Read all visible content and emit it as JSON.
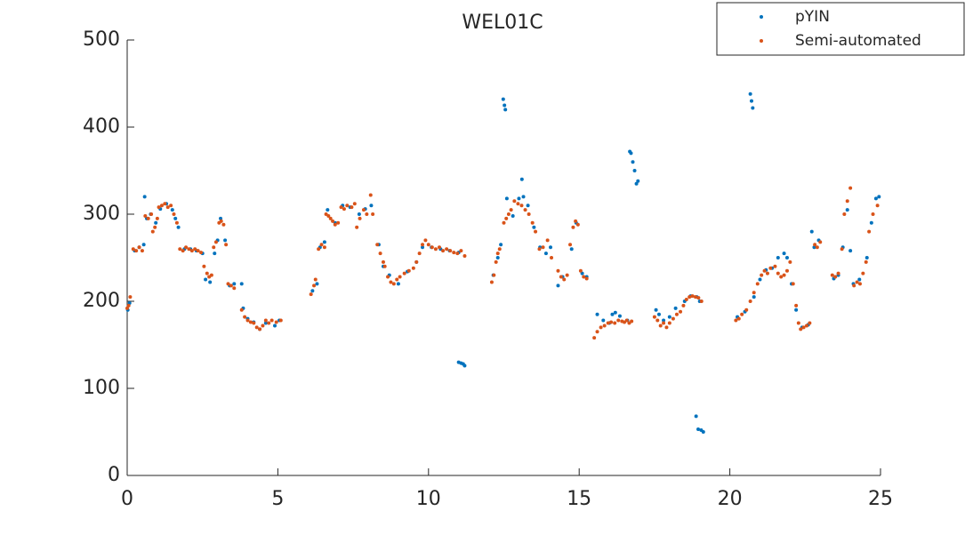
{
  "chart_data": {
    "type": "scatter",
    "title": "WEL01C",
    "xlim": [
      0,
      25
    ],
    "xticks": [
      0,
      5,
      10,
      15,
      20,
      25
    ],
    "ylim": [
      0,
      500
    ],
    "yticks": [
      0,
      100,
      200,
      300,
      400,
      500
    ],
    "grid": false,
    "legend": "top-right",
    "series": [
      {
        "name": "pYIN",
        "color": "#0072bd",
        "x": [
          0.02,
          0.08,
          0.25,
          0.4,
          0.55,
          0.58,
          0.65,
          0.78,
          0.95,
          1.1,
          1.3,
          1.5,
          1.6,
          1.7,
          1.9,
          2.1,
          2.3,
          2.5,
          2.6,
          2.75,
          2.9,
          3.0,
          3.1,
          3.25,
          3.4,
          3.55,
          3.8,
          3.85,
          4.0,
          4.2,
          4.4,
          4.6,
          4.9,
          5.05,
          6.15,
          6.3,
          6.4,
          6.55,
          6.65,
          6.9,
          7.15,
          7.4,
          7.7,
          7.9,
          8.1,
          8.35,
          8.5,
          8.7,
          9.0,
          9.3,
          9.6,
          9.8,
          10.1,
          10.4,
          10.7,
          11.0,
          11.0,
          11.08,
          11.15,
          11.2,
          12.15,
          12.3,
          12.4,
          12.48,
          12.52,
          12.55,
          12.6,
          12.8,
          13.0,
          13.1,
          13.15,
          13.3,
          13.5,
          13.7,
          13.9,
          14.05,
          14.3,
          14.45,
          14.75,
          14.9,
          15.1,
          15.25,
          15.6,
          15.8,
          16.0,
          16.1,
          16.2,
          16.35,
          16.6,
          16.68,
          16.72,
          16.78,
          16.84,
          16.9,
          16.95,
          17.55,
          17.65,
          17.8,
          18.0,
          18.2,
          18.5,
          18.7,
          18.9,
          19.0,
          18.88,
          18.95,
          19.05,
          19.12,
          20.25,
          20.5,
          20.68,
          20.72,
          20.76,
          20.8,
          21.0,
          21.2,
          21.4,
          21.6,
          21.8,
          21.9,
          22.05,
          22.2,
          22.4,
          22.6,
          22.72,
          22.8,
          22.95,
          23.45,
          23.6,
          23.75,
          23.9,
          24.0,
          24.1,
          24.3,
          24.55,
          24.7,
          24.85,
          24.95
        ],
        "values": [
          190,
          198,
          258,
          262,
          265,
          320,
          295,
          300,
          290,
          306,
          312,
          305,
          295,
          285,
          260,
          260,
          258,
          255,
          225,
          222,
          255,
          270,
          295,
          270,
          218,
          220,
          220,
          192,
          180,
          176,
          168,
          175,
          172,
          178,
          212,
          220,
          262,
          268,
          305,
          290,
          310,
          308,
          300,
          306,
          310,
          265,
          240,
          230,
          220,
          234,
          245,
          262,
          262,
          260,
          258,
          256,
          130,
          129,
          128,
          126,
          230,
          250,
          265,
          432,
          425,
          420,
          318,
          298,
          318,
          340,
          320,
          310,
          285,
          262,
          255,
          262,
          218,
          228,
          260,
          290,
          232,
          228,
          185,
          178,
          175,
          185,
          187,
          183,
          178,
          372,
          370,
          360,
          350,
          335,
          338,
          190,
          185,
          178,
          182,
          192,
          200,
          206,
          205,
          200,
          68,
          53,
          52,
          50,
          182,
          188,
          438,
          430,
          422,
          205,
          225,
          236,
          238,
          250,
          255,
          250,
          220,
          190,
          170,
          173,
          280,
          262,
          270,
          226,
          230,
          262,
          305,
          258,
          220,
          225,
          250,
          290,
          318,
          320
        ]
      },
      {
        "name": "Semi-automated",
        "color": "#d95319",
        "x": [
          0.0,
          0.05,
          0.1,
          0.2,
          0.3,
          0.4,
          0.5,
          0.6,
          0.7,
          0.8,
          0.85,
          0.92,
          1.0,
          1.05,
          1.15,
          1.25,
          1.35,
          1.45,
          1.55,
          1.65,
          1.75,
          1.85,
          1.95,
          2.05,
          2.15,
          2.25,
          2.35,
          2.45,
          2.55,
          2.65,
          2.72,
          2.8,
          2.87,
          2.95,
          3.05,
          3.12,
          3.2,
          3.28,
          3.35,
          3.45,
          3.55,
          3.8,
          3.9,
          4.0,
          4.1,
          4.2,
          4.3,
          4.4,
          4.5,
          4.6,
          4.7,
          4.8,
          4.95,
          5.1,
          6.1,
          6.2,
          6.25,
          6.35,
          6.45,
          6.55,
          6.6,
          6.68,
          6.75,
          6.82,
          6.9,
          7.0,
          7.1,
          7.2,
          7.3,
          7.45,
          7.55,
          7.62,
          7.72,
          7.85,
          7.95,
          8.08,
          8.15,
          8.3,
          8.4,
          8.5,
          8.55,
          8.65,
          8.75,
          8.85,
          8.95,
          9.05,
          9.2,
          9.35,
          9.5,
          9.6,
          9.7,
          9.8,
          9.9,
          10.0,
          10.12,
          10.24,
          10.36,
          10.48,
          10.6,
          10.72,
          10.84,
          10.96,
          11.08,
          11.2,
          12.1,
          12.17,
          12.24,
          12.3,
          12.36,
          12.5,
          12.58,
          12.66,
          12.74,
          12.85,
          12.97,
          13.09,
          13.21,
          13.33,
          13.45,
          13.55,
          13.68,
          13.8,
          13.95,
          14.08,
          14.3,
          14.4,
          14.5,
          14.6,
          14.7,
          14.8,
          14.88,
          14.96,
          15.05,
          15.15,
          15.25,
          15.5,
          15.6,
          15.72,
          15.84,
          15.96,
          16.06,
          16.18,
          16.3,
          16.42,
          16.5,
          16.58,
          16.66,
          16.74,
          17.5,
          17.6,
          17.7,
          17.8,
          17.9,
          18.0,
          18.12,
          18.24,
          18.36,
          18.46,
          18.56,
          18.66,
          18.76,
          18.86,
          18.96,
          19.06,
          20.2,
          20.3,
          20.4,
          20.55,
          20.68,
          20.8,
          20.92,
          21.05,
          21.15,
          21.25,
          21.35,
          21.5,
          21.6,
          21.7,
          21.8,
          21.9,
          22.0,
          22.1,
          22.2,
          22.28,
          22.35,
          22.45,
          22.55,
          22.65,
          22.82,
          22.9,
          23.0,
          23.4,
          23.5,
          23.6,
          23.72,
          23.8,
          23.9,
          24.0,
          24.12,
          24.22,
          24.32,
          24.42,
          24.52,
          24.62,
          24.75,
          24.9
        ],
        "values": [
          192,
          195,
          205,
          260,
          258,
          262,
          258,
          298,
          295,
          300,
          280,
          285,
          295,
          308,
          310,
          312,
          308,
          310,
          300,
          290,
          260,
          258,
          262,
          260,
          258,
          260,
          258,
          256,
          240,
          232,
          228,
          230,
          262,
          268,
          290,
          292,
          288,
          265,
          220,
          218,
          215,
          190,
          182,
          178,
          176,
          175,
          170,
          168,
          172,
          178,
          175,
          178,
          176,
          178,
          208,
          218,
          225,
          260,
          265,
          262,
          300,
          298,
          295,
          292,
          288,
          290,
          308,
          306,
          310,
          308,
          312,
          285,
          295,
          305,
          300,
          322,
          300,
          265,
          255,
          245,
          240,
          228,
          222,
          220,
          225,
          228,
          232,
          235,
          238,
          245,
          255,
          265,
          270,
          265,
          262,
          260,
          262,
          258,
          260,
          258,
          256,
          255,
          258,
          252,
          222,
          230,
          245,
          255,
          260,
          290,
          295,
          300,
          305,
          315,
          312,
          310,
          305,
          300,
          290,
          280,
          260,
          262,
          270,
          250,
          235,
          228,
          225,
          230,
          265,
          285,
          292,
          288,
          235,
          228,
          226,
          158,
          165,
          170,
          172,
          175,
          176,
          175,
          178,
          177,
          176,
          178,
          175,
          177,
          182,
          178,
          172,
          175,
          170,
          175,
          180,
          185,
          188,
          195,
          202,
          205,
          206,
          205,
          204,
          200,
          178,
          180,
          185,
          190,
          200,
          210,
          220,
          230,
          235,
          232,
          238,
          240,
          232,
          228,
          230,
          235,
          245,
          220,
          195,
          175,
          168,
          170,
          172,
          175,
          265,
          262,
          268,
          230,
          228,
          232,
          260,
          300,
          315,
          330,
          218,
          222,
          220,
          232,
          245,
          280,
          300,
          310
        ]
      }
    ]
  }
}
